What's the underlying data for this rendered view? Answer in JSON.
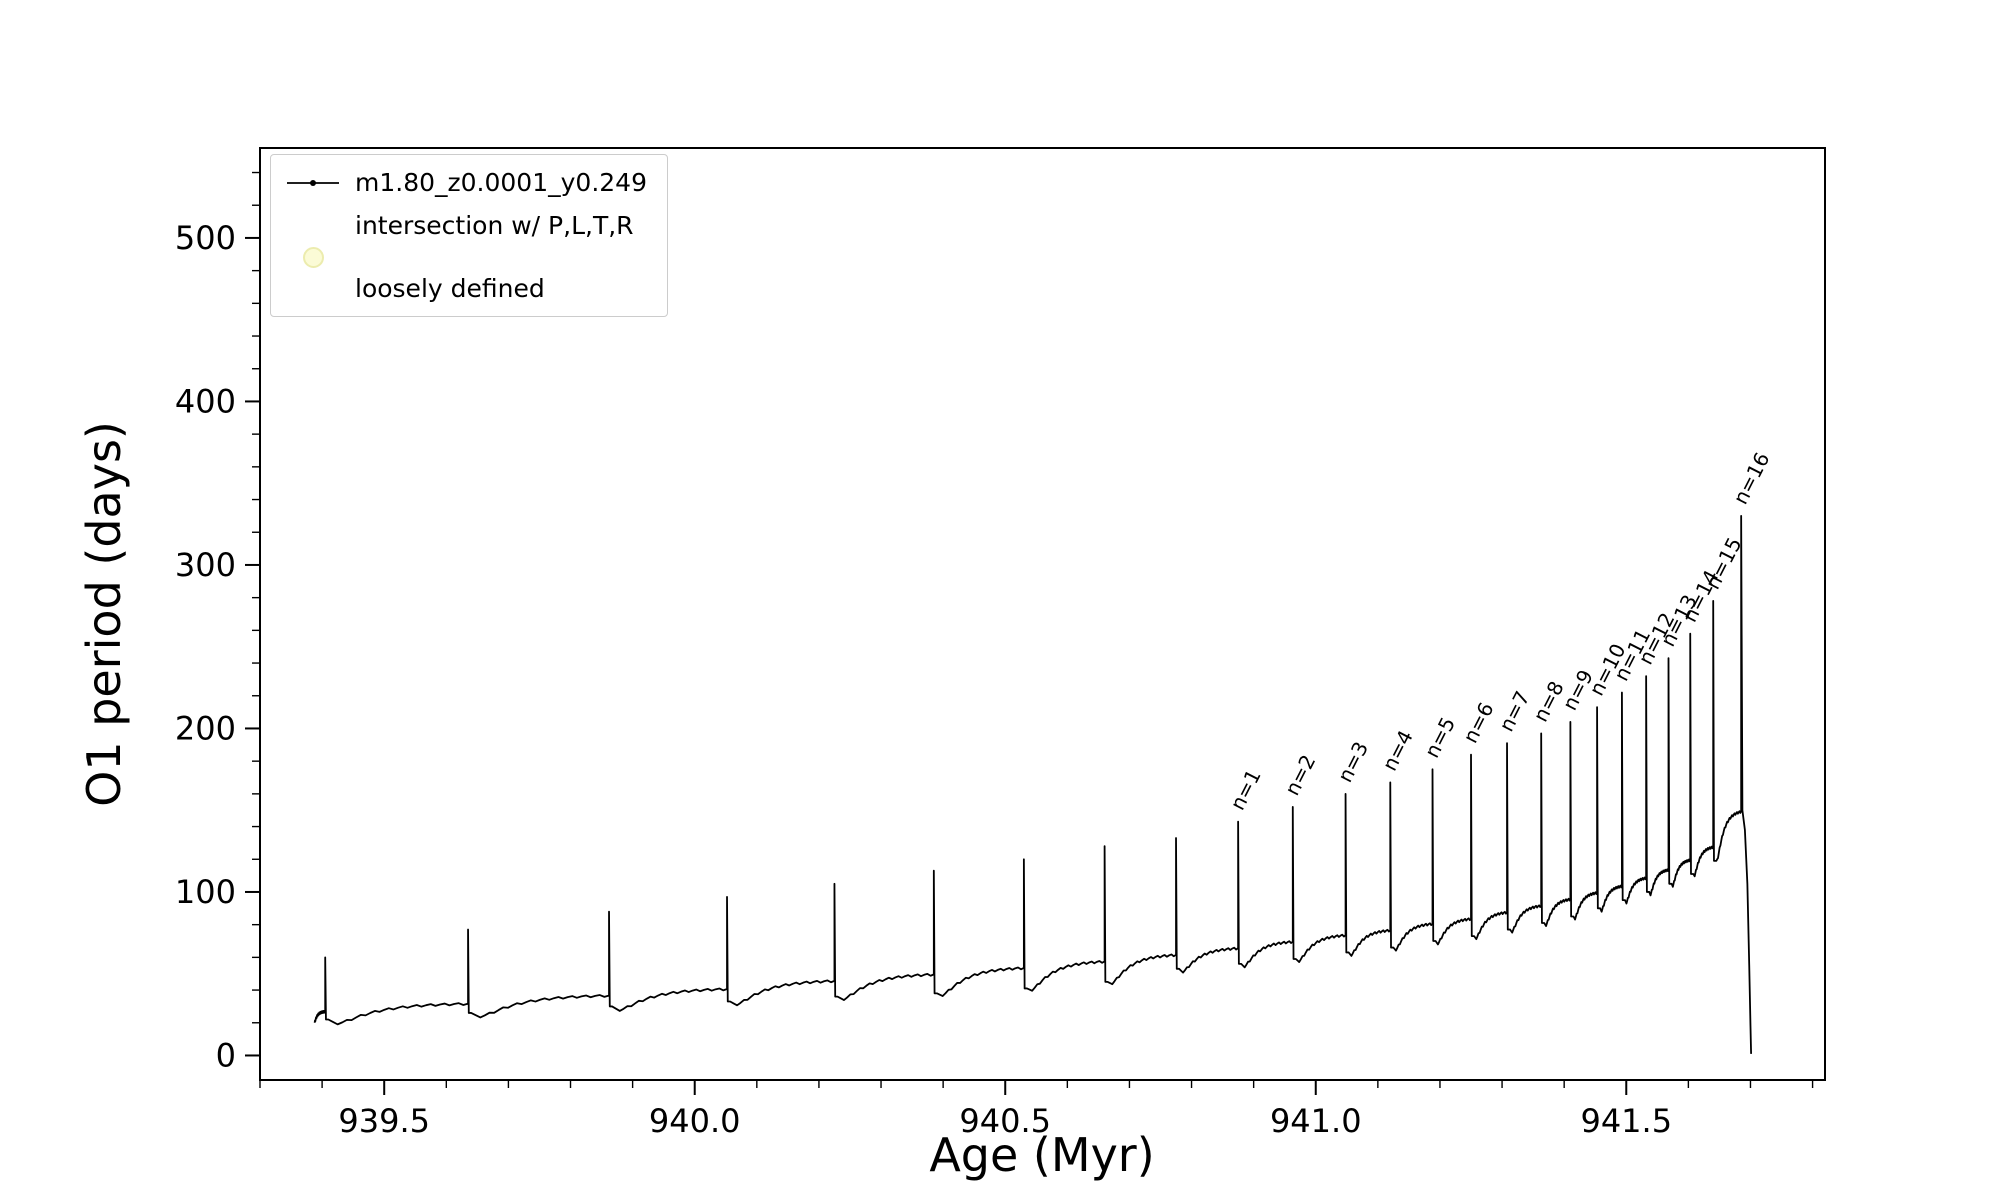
{
  "figure": {
    "background": "#ffffff",
    "line_color": "#000000",
    "tick_color": "#000000",
    "legend_border_color": "#cccccc",
    "intersection_marker_fill": "#fbfbd6",
    "intersection_marker_edge": "#ececae",
    "legend": {
      "entries": [
        {
          "label": "m1.80_z0.0001_y0.249",
          "marker": "line-dot",
          "color": "#000000"
        },
        {
          "label_line1": "intersection w/ P,L,T,R",
          "label_line2": "loosely defined",
          "marker": "circle",
          "color": "#fbfbd6"
        }
      ]
    }
  },
  "chart_data": {
    "type": "line",
    "title": "",
    "xlabel": "Age (Myr)",
    "ylabel": "O1 period (days)",
    "xlim": [
      939.3,
      941.82
    ],
    "ylim": [
      -15,
      555
    ],
    "xticks": [
      939.5,
      940.0,
      940.5,
      941.0,
      941.5
    ],
    "yticks": [
      0,
      100,
      200,
      300,
      400,
      500
    ],
    "x_minor_step": 0.1,
    "y_minor_step": 20,
    "grid": false,
    "legend_position": "upper left",
    "series_name": "m1.80_z0.0001_y0.249",
    "description": "Relaxation-oscillator style curve: slowly rising baseline with sharp vertical spikes; spikes n=1..16 annotated; curve drops to 0 at the end.",
    "cycles": [
      {
        "x_start": 939.388,
        "x_spike": 939.405,
        "y_start": 20,
        "y_end": 27,
        "peak": 60
      },
      {
        "x_start": 939.41,
        "x_spike": 939.635,
        "y_start": 13,
        "y_end": 32,
        "peak": 77
      },
      {
        "x_start": 939.64,
        "x_spike": 939.862,
        "y_start": 17,
        "y_end": 37,
        "peak": 88
      },
      {
        "x_start": 939.867,
        "x_spike": 940.052,
        "y_start": 21,
        "y_end": 41,
        "peak": 97
      },
      {
        "x_start": 940.057,
        "x_spike": 940.225,
        "y_start": 24,
        "y_end": 46,
        "peak": 105
      },
      {
        "x_start": 940.23,
        "x_spike": 940.385,
        "y_start": 27,
        "y_end": 50,
        "peak": 113
      },
      {
        "x_start": 940.39,
        "x_spike": 940.53,
        "y_start": 29,
        "y_end": 54,
        "peak": 120
      },
      {
        "x_start": 940.535,
        "x_spike": 940.66,
        "y_start": 32,
        "y_end": 58,
        "peak": 128
      },
      {
        "x_start": 940.665,
        "x_spike": 940.775,
        "y_start": 36,
        "y_end": 62,
        "peak": 133
      },
      {
        "x_start": 940.78,
        "x_spike": 940.875,
        "y_start": 44,
        "y_end": 66,
        "peak": 143
      },
      {
        "x_start": 940.88,
        "x_spike": 940.963,
        "y_start": 47,
        "y_end": 70,
        "peak": 152
      },
      {
        "x_start": 940.968,
        "x_spike": 941.048,
        "y_start": 50,
        "y_end": 74,
        "peak": 160
      },
      {
        "x_start": 941.053,
        "x_spike": 941.12,
        "y_start": 54,
        "y_end": 77,
        "peak": 167
      },
      {
        "x_start": 941.125,
        "x_spike": 941.188,
        "y_start": 57,
        "y_end": 81,
        "peak": 175
      },
      {
        "x_start": 941.193,
        "x_spike": 941.25,
        "y_start": 61,
        "y_end": 84,
        "peak": 184
      },
      {
        "x_start": 941.255,
        "x_spike": 941.308,
        "y_start": 64,
        "y_end": 88,
        "peak": 191
      },
      {
        "x_start": 941.313,
        "x_spike": 941.363,
        "y_start": 68,
        "y_end": 92,
        "peak": 197
      },
      {
        "x_start": 941.368,
        "x_spike": 941.41,
        "y_start": 72,
        "y_end": 96,
        "peak": 204
      },
      {
        "x_start": 941.415,
        "x_spike": 941.453,
        "y_start": 76,
        "y_end": 100,
        "peak": 213
      },
      {
        "x_start": 941.458,
        "x_spike": 941.493,
        "y_start": 81,
        "y_end": 104,
        "peak": 222
      },
      {
        "x_start": 941.498,
        "x_spike": 941.532,
        "y_start": 86,
        "y_end": 109,
        "peak": 232
      },
      {
        "x_start": 941.537,
        "x_spike": 941.568,
        "y_start": 91,
        "y_end": 114,
        "peak": 243
      },
      {
        "x_start": 941.573,
        "x_spike": 941.603,
        "y_start": 96,
        "y_end": 120,
        "peak": 258
      },
      {
        "x_start": 941.608,
        "x_spike": 941.64,
        "y_start": 102,
        "y_end": 128,
        "peak": 278
      },
      {
        "x_start": 941.645,
        "x_spike": 941.685,
        "y_start": 110,
        "y_end": 150,
        "peak": 330
      }
    ],
    "tail": [
      [
        941.687,
        150
      ],
      [
        941.691,
        138
      ],
      [
        941.695,
        105
      ],
      [
        941.698,
        55
      ],
      [
        941.7,
        18
      ],
      [
        941.701,
        1
      ]
    ],
    "annotations": [
      {
        "label": "n=1",
        "x": 940.875,
        "peak": 143
      },
      {
        "label": "n=2",
        "x": 940.963,
        "peak": 152
      },
      {
        "label": "n=3",
        "x": 941.048,
        "peak": 160
      },
      {
        "label": "n=4",
        "x": 941.12,
        "peak": 167
      },
      {
        "label": "n=5",
        "x": 941.188,
        "peak": 175
      },
      {
        "label": "n=6",
        "x": 941.25,
        "peak": 184
      },
      {
        "label": "n=7",
        "x": 941.308,
        "peak": 191
      },
      {
        "label": "n=8",
        "x": 941.363,
        "peak": 197
      },
      {
        "label": "n=9",
        "x": 941.41,
        "peak": 204
      },
      {
        "label": "n=10",
        "x": 941.453,
        "peak": 213
      },
      {
        "label": "n=11",
        "x": 941.493,
        "peak": 222
      },
      {
        "label": "n=12",
        "x": 941.532,
        "peak": 232
      },
      {
        "label": "n=13",
        "x": 941.568,
        "peak": 243
      },
      {
        "label": "n=14",
        "x": 941.603,
        "peak": 258
      },
      {
        "label": "n=15",
        "x": 941.64,
        "peak": 278
      },
      {
        "label": "n=16",
        "x": 941.685,
        "peak": 330
      }
    ]
  }
}
